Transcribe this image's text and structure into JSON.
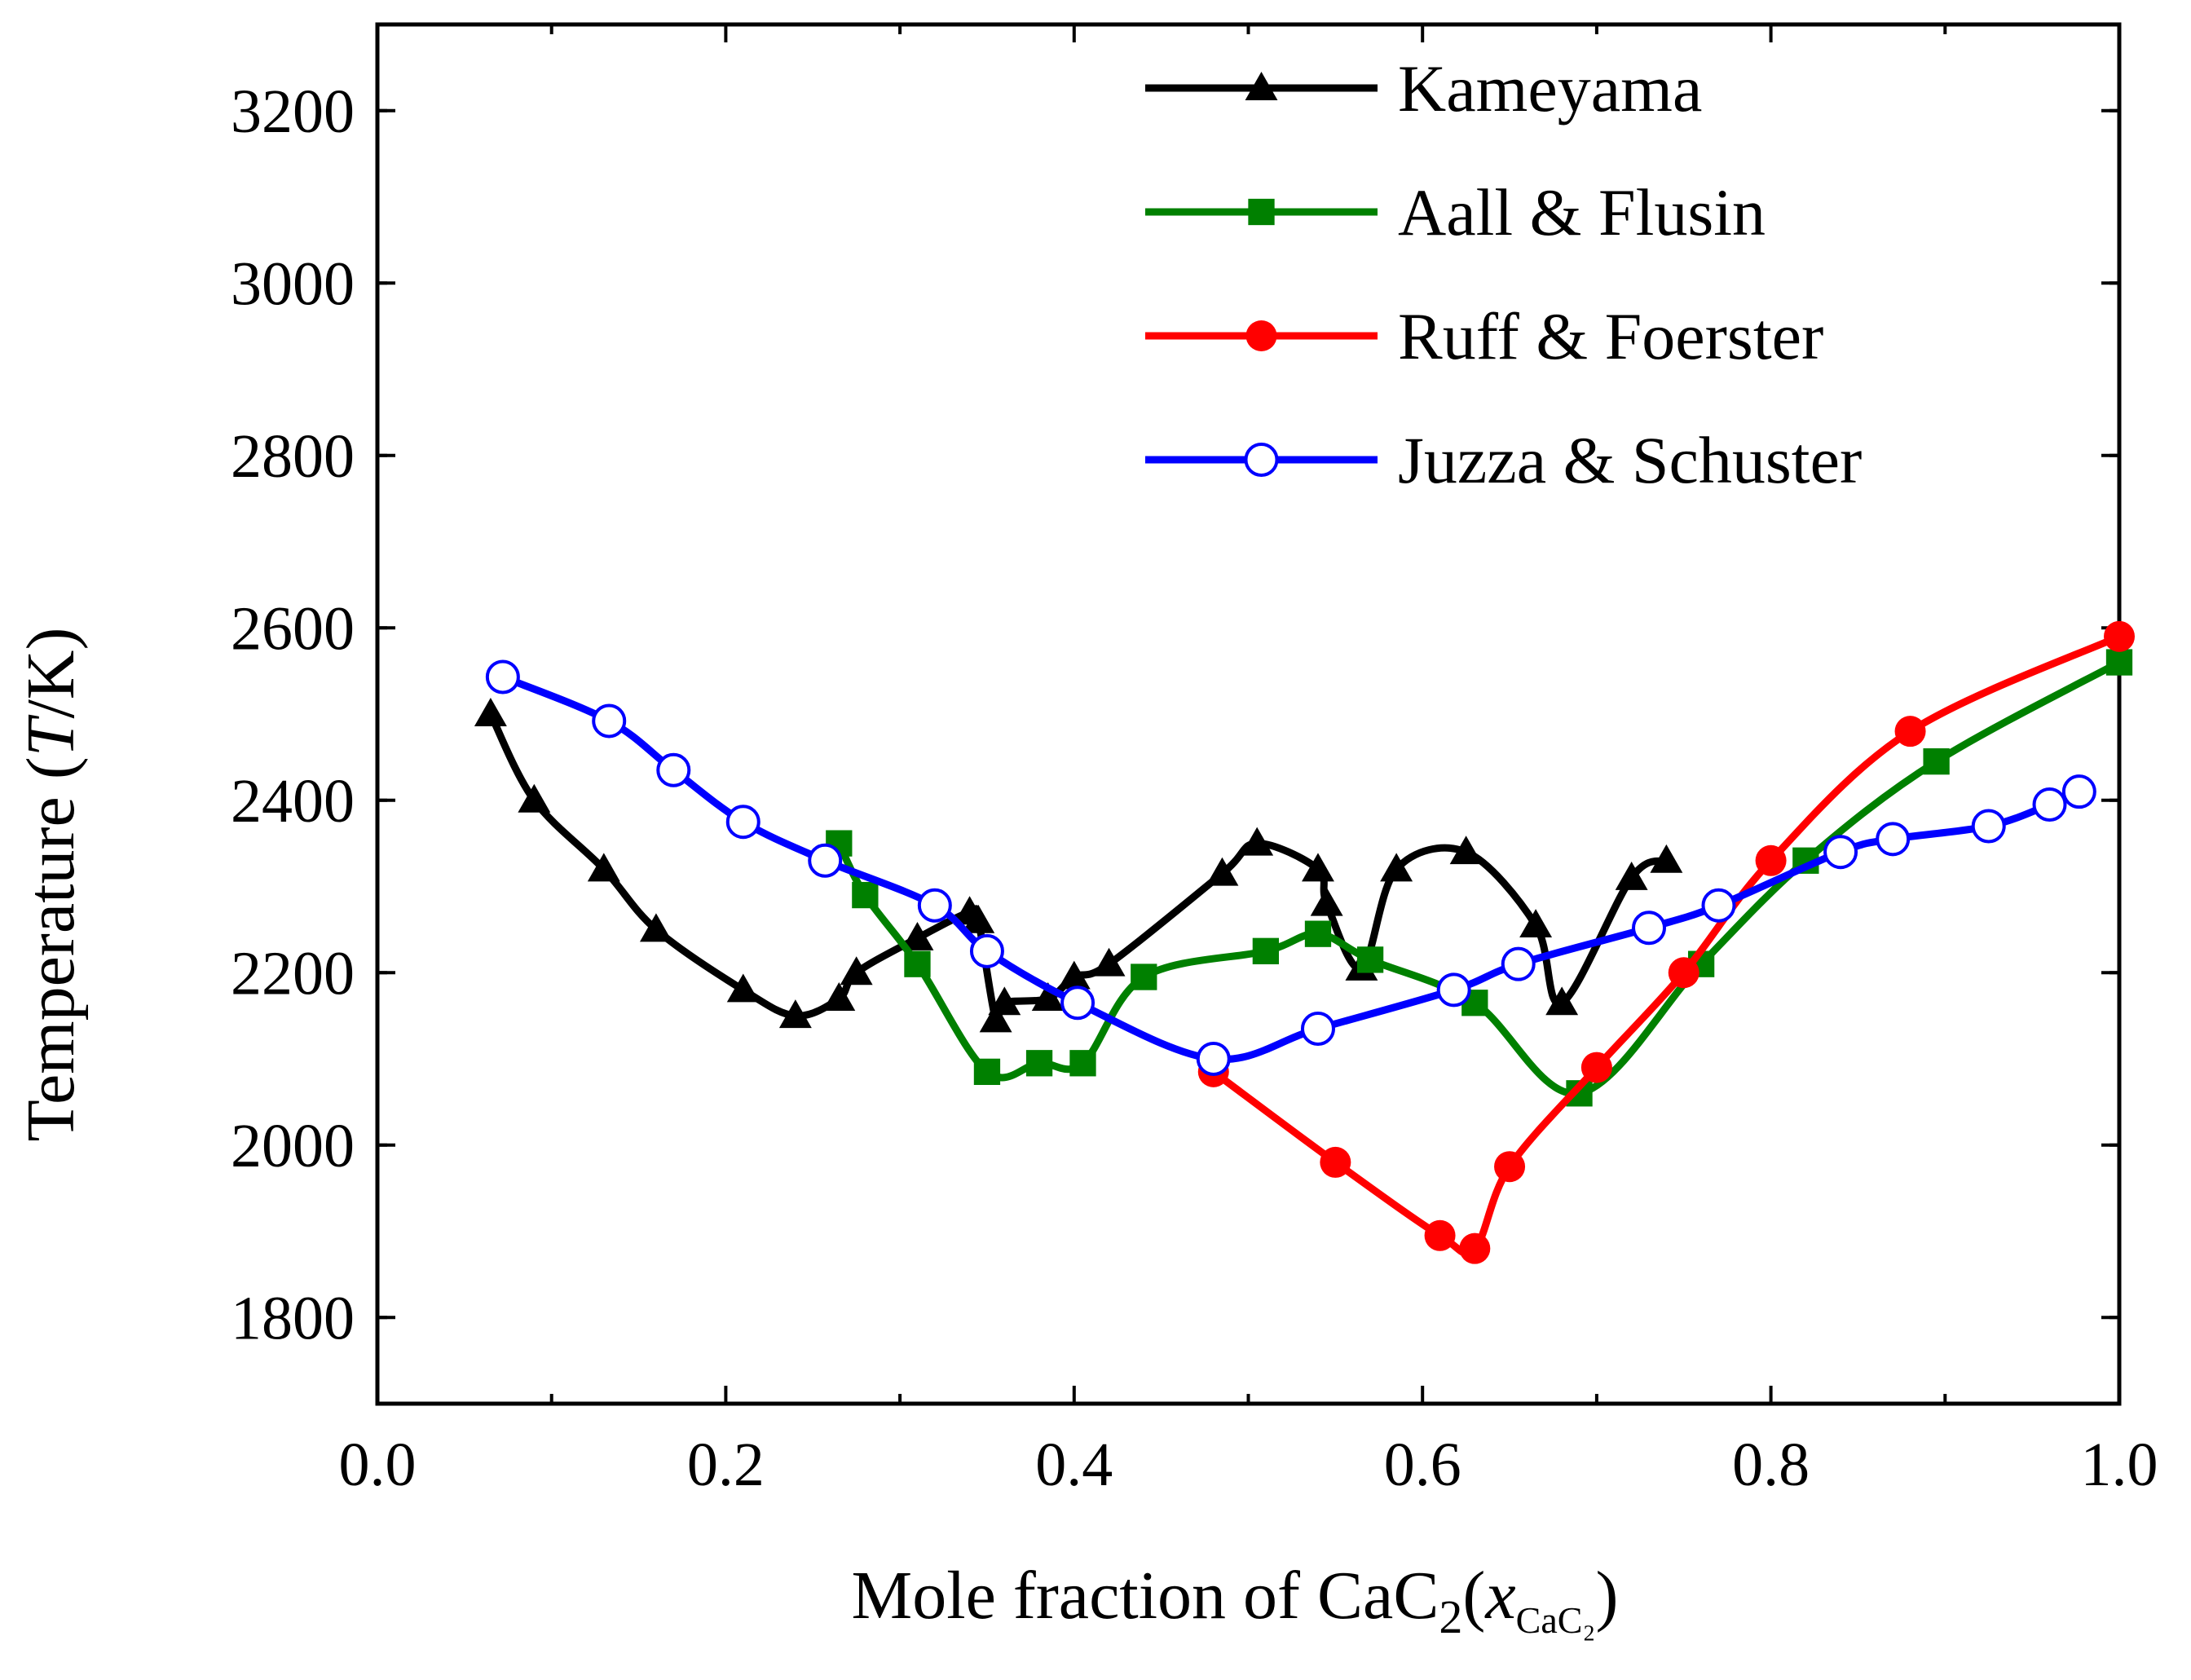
{
  "chart_data": {
    "type": "line",
    "title": "",
    "xlabel": {
      "prefix": "Mole fraction of CaC",
      "sub": "2",
      "open": "(",
      "var": "x",
      "var_sub": "CaC₂",
      "close": ")"
    },
    "ylabel": {
      "prefix": "Temperature (",
      "var": "T",
      "suffix": "/K)"
    },
    "xlim": [
      0.0,
      1.0
    ],
    "ylim": [
      1700,
      3300
    ],
    "x_ticks": [
      0.0,
      0.2,
      0.4,
      0.6,
      0.8,
      1.0
    ],
    "x_tick_labels": [
      "0.0",
      "0.2",
      "0.4",
      "0.6",
      "0.8",
      "1.0"
    ],
    "y_ticks": [
      1800,
      2000,
      2200,
      2400,
      2600,
      2800,
      3000,
      3200
    ],
    "y_tick_labels": [
      "1800",
      "2000",
      "2200",
      "2400",
      "2600",
      "2800",
      "3000",
      "3200"
    ],
    "legend_position": "top-right",
    "series": [
      {
        "name": "Kameyama",
        "color": "#000000",
        "marker": "triangle",
        "x": [
          0.065,
          0.09,
          0.13,
          0.16,
          0.21,
          0.24,
          0.265,
          0.275,
          0.31,
          0.34,
          0.345,
          0.355,
          0.36,
          0.385,
          0.4,
          0.42,
          0.485,
          0.505,
          0.54,
          0.545,
          0.565,
          0.585,
          0.625,
          0.665,
          0.68,
          0.72,
          0.74
        ],
        "values": [
          2500,
          2400,
          2320,
          2250,
          2180,
          2150,
          2170,
          2200,
          2240,
          2270,
          2260,
          2145,
          2165,
          2170,
          2195,
          2210,
          2315,
          2350,
          2320,
          2280,
          2205,
          2320,
          2340,
          2255,
          2165,
          2310,
          2330
        ]
      },
      {
        "name": "Aall & Flusin",
        "color": "#008000",
        "marker": "square",
        "x": [
          0.265,
          0.28,
          0.31,
          0.35,
          0.38,
          0.405,
          0.44,
          0.51,
          0.54,
          0.57,
          0.63,
          0.69,
          0.76,
          0.82,
          0.895,
          1.0
        ],
        "values": [
          2350,
          2290,
          2210,
          2085,
          2095,
          2095,
          2195,
          2225,
          2245,
          2215,
          2165,
          2060,
          2210,
          2330,
          2445,
          2560
        ]
      },
      {
        "name": "Ruff & Foerster",
        "color": "#ff0000",
        "marker": "circle",
        "x": [
          0.48,
          0.55,
          0.61,
          0.63,
          0.65,
          0.7,
          0.75,
          0.8,
          0.88,
          1.0
        ],
        "values": [
          2085,
          1980,
          1895,
          1880,
          1975,
          2090,
          2200,
          2330,
          2480,
          2590
        ]
      },
      {
        "name": "Juzza & Schuster",
        "color": "#0000ff",
        "marker": "open-circle",
        "x": [
          0.072,
          0.133,
          0.17,
          0.21,
          0.257,
          0.32,
          0.35,
          0.402,
          0.48,
          0.54,
          0.618,
          0.655,
          0.73,
          0.77,
          0.84,
          0.87,
          0.925,
          0.96,
          0.977
        ],
        "values": [
          2543,
          2492,
          2435,
          2375,
          2330,
          2278,
          2225,
          2165,
          2100,
          2135,
          2180,
          2210,
          2252,
          2278,
          2340,
          2355,
          2370,
          2395,
          2410
        ]
      }
    ]
  }
}
